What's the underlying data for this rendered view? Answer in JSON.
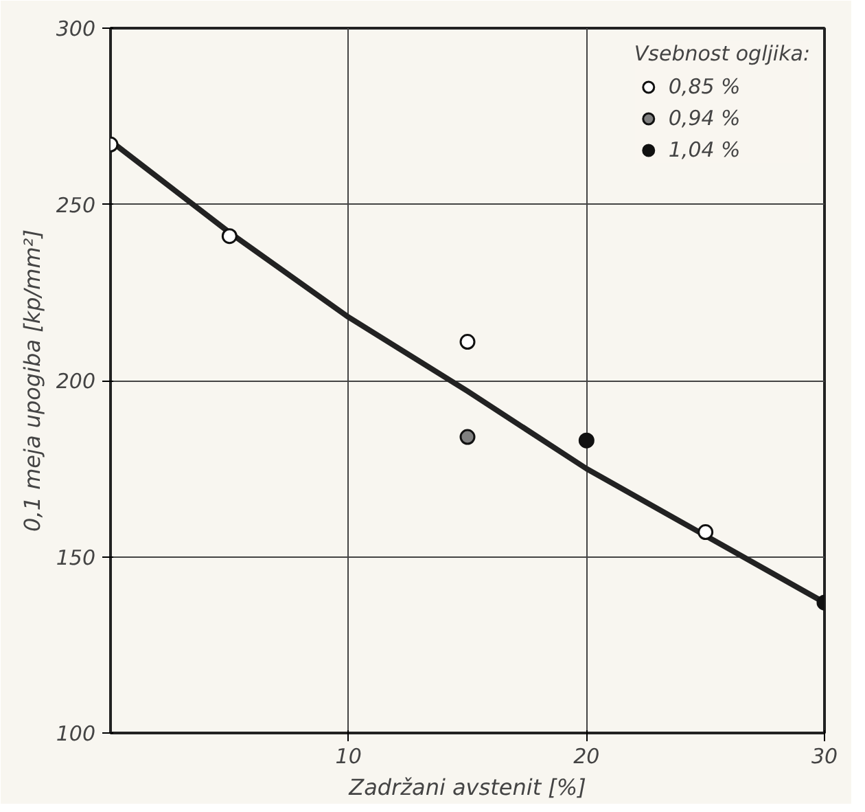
{
  "chart_data": {
    "type": "scatter",
    "xlabel": "Zadržani avstenit [%]",
    "ylabel": "0,1 meja upogiba [kp/mm²]",
    "legend_title": "Vsebnost ogljika:",
    "xlim": [
      0,
      30
    ],
    "ylim": [
      100,
      300
    ],
    "xticks": [
      10,
      20,
      30
    ],
    "yticks": [
      100,
      150,
      200,
      250,
      300
    ],
    "grid": true,
    "legend": "top right",
    "marker": "circle",
    "series": [
      {
        "type": "line",
        "color": "#222222",
        "marker": "none",
        "x": [
          0,
          5,
          10,
          15,
          20,
          25,
          30
        ],
        "values": [
          268,
          242,
          218,
          197,
          175,
          156,
          137
        ]
      },
      {
        "name": "0,85 %",
        "color": "#ffffff",
        "x": [
          0,
          5,
          15,
          25
        ],
        "values": [
          267,
          241,
          211,
          157
        ]
      },
      {
        "name": "0,94 %",
        "color": "#808080",
        "x": [
          15
        ],
        "values": [
          184
        ]
      },
      {
        "name": "1,04 %",
        "color": "#111111",
        "x": [
          20,
          30
        ],
        "values": [
          183,
          137
        ]
      }
    ]
  }
}
